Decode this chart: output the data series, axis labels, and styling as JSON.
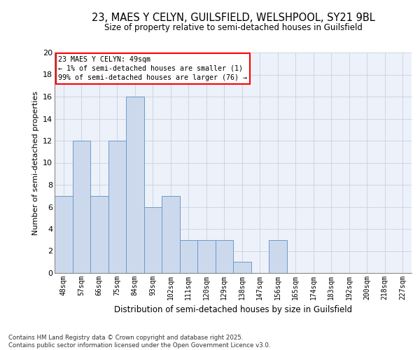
{
  "title1": "23, MAES Y CELYN, GUILSFIELD, WELSHPOOL, SY21 9BL",
  "title2": "Size of property relative to semi-detached houses in Guilsfield",
  "xlabel": "Distribution of semi-detached houses by size in Guilsfield",
  "ylabel": "Number of semi-detached properties",
  "categories": [
    "48sqm",
    "57sqm",
    "66sqm",
    "75sqm",
    "84sqm",
    "93sqm",
    "102sqm",
    "111sqm",
    "120sqm",
    "129sqm",
    "138sqm",
    "147sqm",
    "156sqm",
    "165sqm",
    "174sqm",
    "183sqm",
    "192sqm",
    "200sqm",
    "218sqm",
    "227sqm"
  ],
  "values": [
    7,
    12,
    7,
    12,
    16,
    6,
    7,
    3,
    3,
    3,
    1,
    0,
    3,
    0,
    0,
    0,
    0,
    0,
    0,
    0
  ],
  "bar_color": "#ccd9ed",
  "bar_edge_color": "#6b9ac8",
  "grid_color": "#c8d0e0",
  "background_color": "#edf1f9",
  "annotation_box_text": "23 MAES Y CELYN: 49sqm\n← 1% of semi-detached houses are smaller (1)\n99% of semi-detached houses are larger (76) →",
  "footer_text": "Contains HM Land Registry data © Crown copyright and database right 2025.\nContains public sector information licensed under the Open Government Licence v3.0.",
  "ylim": [
    0,
    20
  ],
  "yticks": [
    0,
    2,
    4,
    6,
    8,
    10,
    12,
    14,
    16,
    18,
    20
  ]
}
